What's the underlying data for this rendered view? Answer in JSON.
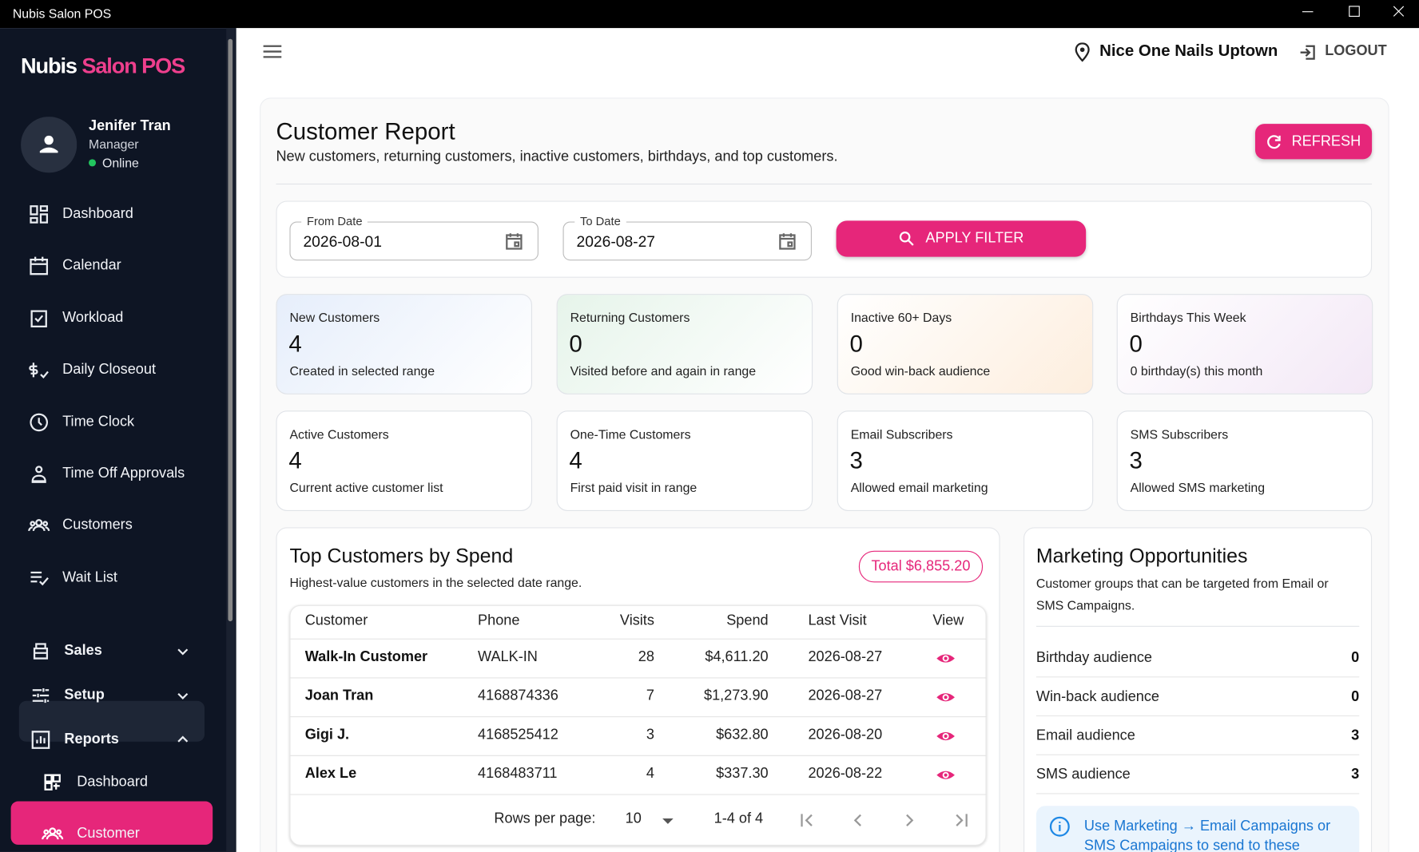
{
  "window": {
    "title": "Nubis Salon POS"
  },
  "sidebar": {
    "brand": {
      "first": "Nubis",
      "second": "Salon POS"
    },
    "user": {
      "name": "Jenifer Tran",
      "role": "Manager",
      "status": "Online"
    },
    "nav": [
      "Dashboard",
      "Calendar",
      "Workload",
      "Daily Closeout",
      "Time Clock",
      "Time Off Approvals",
      "Customers",
      "Wait List"
    ],
    "groups": [
      "Sales",
      "Setup",
      "Reports"
    ],
    "reports_children": [
      "Dashboard",
      "Customer"
    ]
  },
  "topbar": {
    "location": "Nice One Nails Uptown",
    "logout": "LOGOUT"
  },
  "report": {
    "title": "Customer Report",
    "subtitle": "New customers, returning customers, inactive customers, birthdays, and top customers.",
    "refresh": "REFRESH",
    "filter": {
      "from_label": "From Date",
      "from": "2026-08-01",
      "to_label": "To Date",
      "to": "2026-08-27",
      "apply": "APPLY FILTER"
    },
    "stats": [
      {
        "label": "New Customers",
        "value": 4,
        "note": "Created in selected range"
      },
      {
        "label": "Returning Customers",
        "value": 0,
        "note": "Visited before and again in range"
      },
      {
        "label": "Inactive 60+ Days",
        "value": 0,
        "note": "Good win-back audience"
      },
      {
        "label": "Birthdays This Week",
        "value": 0,
        "note": "0 birthday(s) this month"
      },
      {
        "label": "Active Customers",
        "value": 4,
        "note": "Current active customer list"
      },
      {
        "label": "One-Time Customers",
        "value": 4,
        "note": "First paid visit in range"
      },
      {
        "label": "Email Subscribers",
        "value": 3,
        "note": "Allowed email marketing"
      },
      {
        "label": "SMS Subscribers",
        "value": 3,
        "note": "Allowed SMS marketing"
      }
    ],
    "top_customers": {
      "title": "Top Customers by Spend",
      "subtitle": "Highest-value customers in the selected date range.",
      "total": "Total $6,855.20",
      "columns": [
        "Customer",
        "Phone",
        "Visits",
        "Spend",
        "Last Visit",
        "View"
      ],
      "rows": [
        [
          "Walk-In Customer",
          "WALK-IN",
          28,
          "$4,611.20",
          "2026-08-27"
        ],
        [
          "Joan Tran",
          "4168874336",
          7,
          "$1,273.90",
          "2026-08-27"
        ],
        [
          "Gigi J.",
          "4168525412",
          3,
          "$632.80",
          "2026-08-20"
        ],
        [
          "Alex Le",
          "4168483711",
          4,
          "$337.30",
          "2026-08-22"
        ]
      ],
      "pagination": {
        "rows_label": "Rows per page:",
        "rows": 10,
        "range": "1-4 of 4"
      }
    },
    "marketing": {
      "title": "Marketing Opportunities",
      "subtitle": "Customer groups that can be targeted from Email or SMS Campaigns.",
      "items": [
        {
          "label": "Birthday audience",
          "value": 0
        },
        {
          "label": "Win-back audience",
          "value": 0
        },
        {
          "label": "Email audience",
          "value": 3
        },
        {
          "label": "SMS audience",
          "value": 3
        }
      ],
      "note": "Use Marketing → Email Campaigns or SMS Campaigns to send to these"
    }
  }
}
